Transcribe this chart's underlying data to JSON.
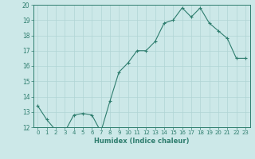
{
  "x": [
    0,
    1,
    2,
    3,
    4,
    5,
    6,
    7,
    8,
    9,
    10,
    11,
    12,
    13,
    14,
    15,
    16,
    17,
    18,
    19,
    20,
    21,
    22,
    23
  ],
  "y": [
    13.4,
    12.5,
    11.8,
    11.7,
    12.8,
    12.9,
    12.8,
    11.7,
    13.7,
    15.6,
    16.2,
    17.0,
    17.0,
    17.6,
    18.8,
    19.0,
    19.8,
    19.2,
    19.8,
    18.8,
    18.3,
    17.8,
    16.5,
    16.5
  ],
  "xlabel": "Humidex (Indice chaleur)",
  "ylim": [
    12,
    20
  ],
  "xlim": [
    -0.5,
    23.5
  ],
  "yticks": [
    12,
    13,
    14,
    15,
    16,
    17,
    18,
    19,
    20
  ],
  "xticks": [
    0,
    1,
    2,
    3,
    4,
    5,
    6,
    7,
    8,
    9,
    10,
    11,
    12,
    13,
    14,
    15,
    16,
    17,
    18,
    19,
    20,
    21,
    22,
    23
  ],
  "line_color": "#2e7d6e",
  "marker_color": "#2e7d6e",
  "bg_color": "#cce8e8",
  "grid_major_color": "#b0d4d4",
  "grid_minor_color": "#c4e0e0",
  "axis_color": "#2e7d6e",
  "label_color": "#2e7d6e",
  "tick_color": "#2e7d6e",
  "xlabel_fontsize": 6.0,
  "tick_fontsize": 5.0
}
